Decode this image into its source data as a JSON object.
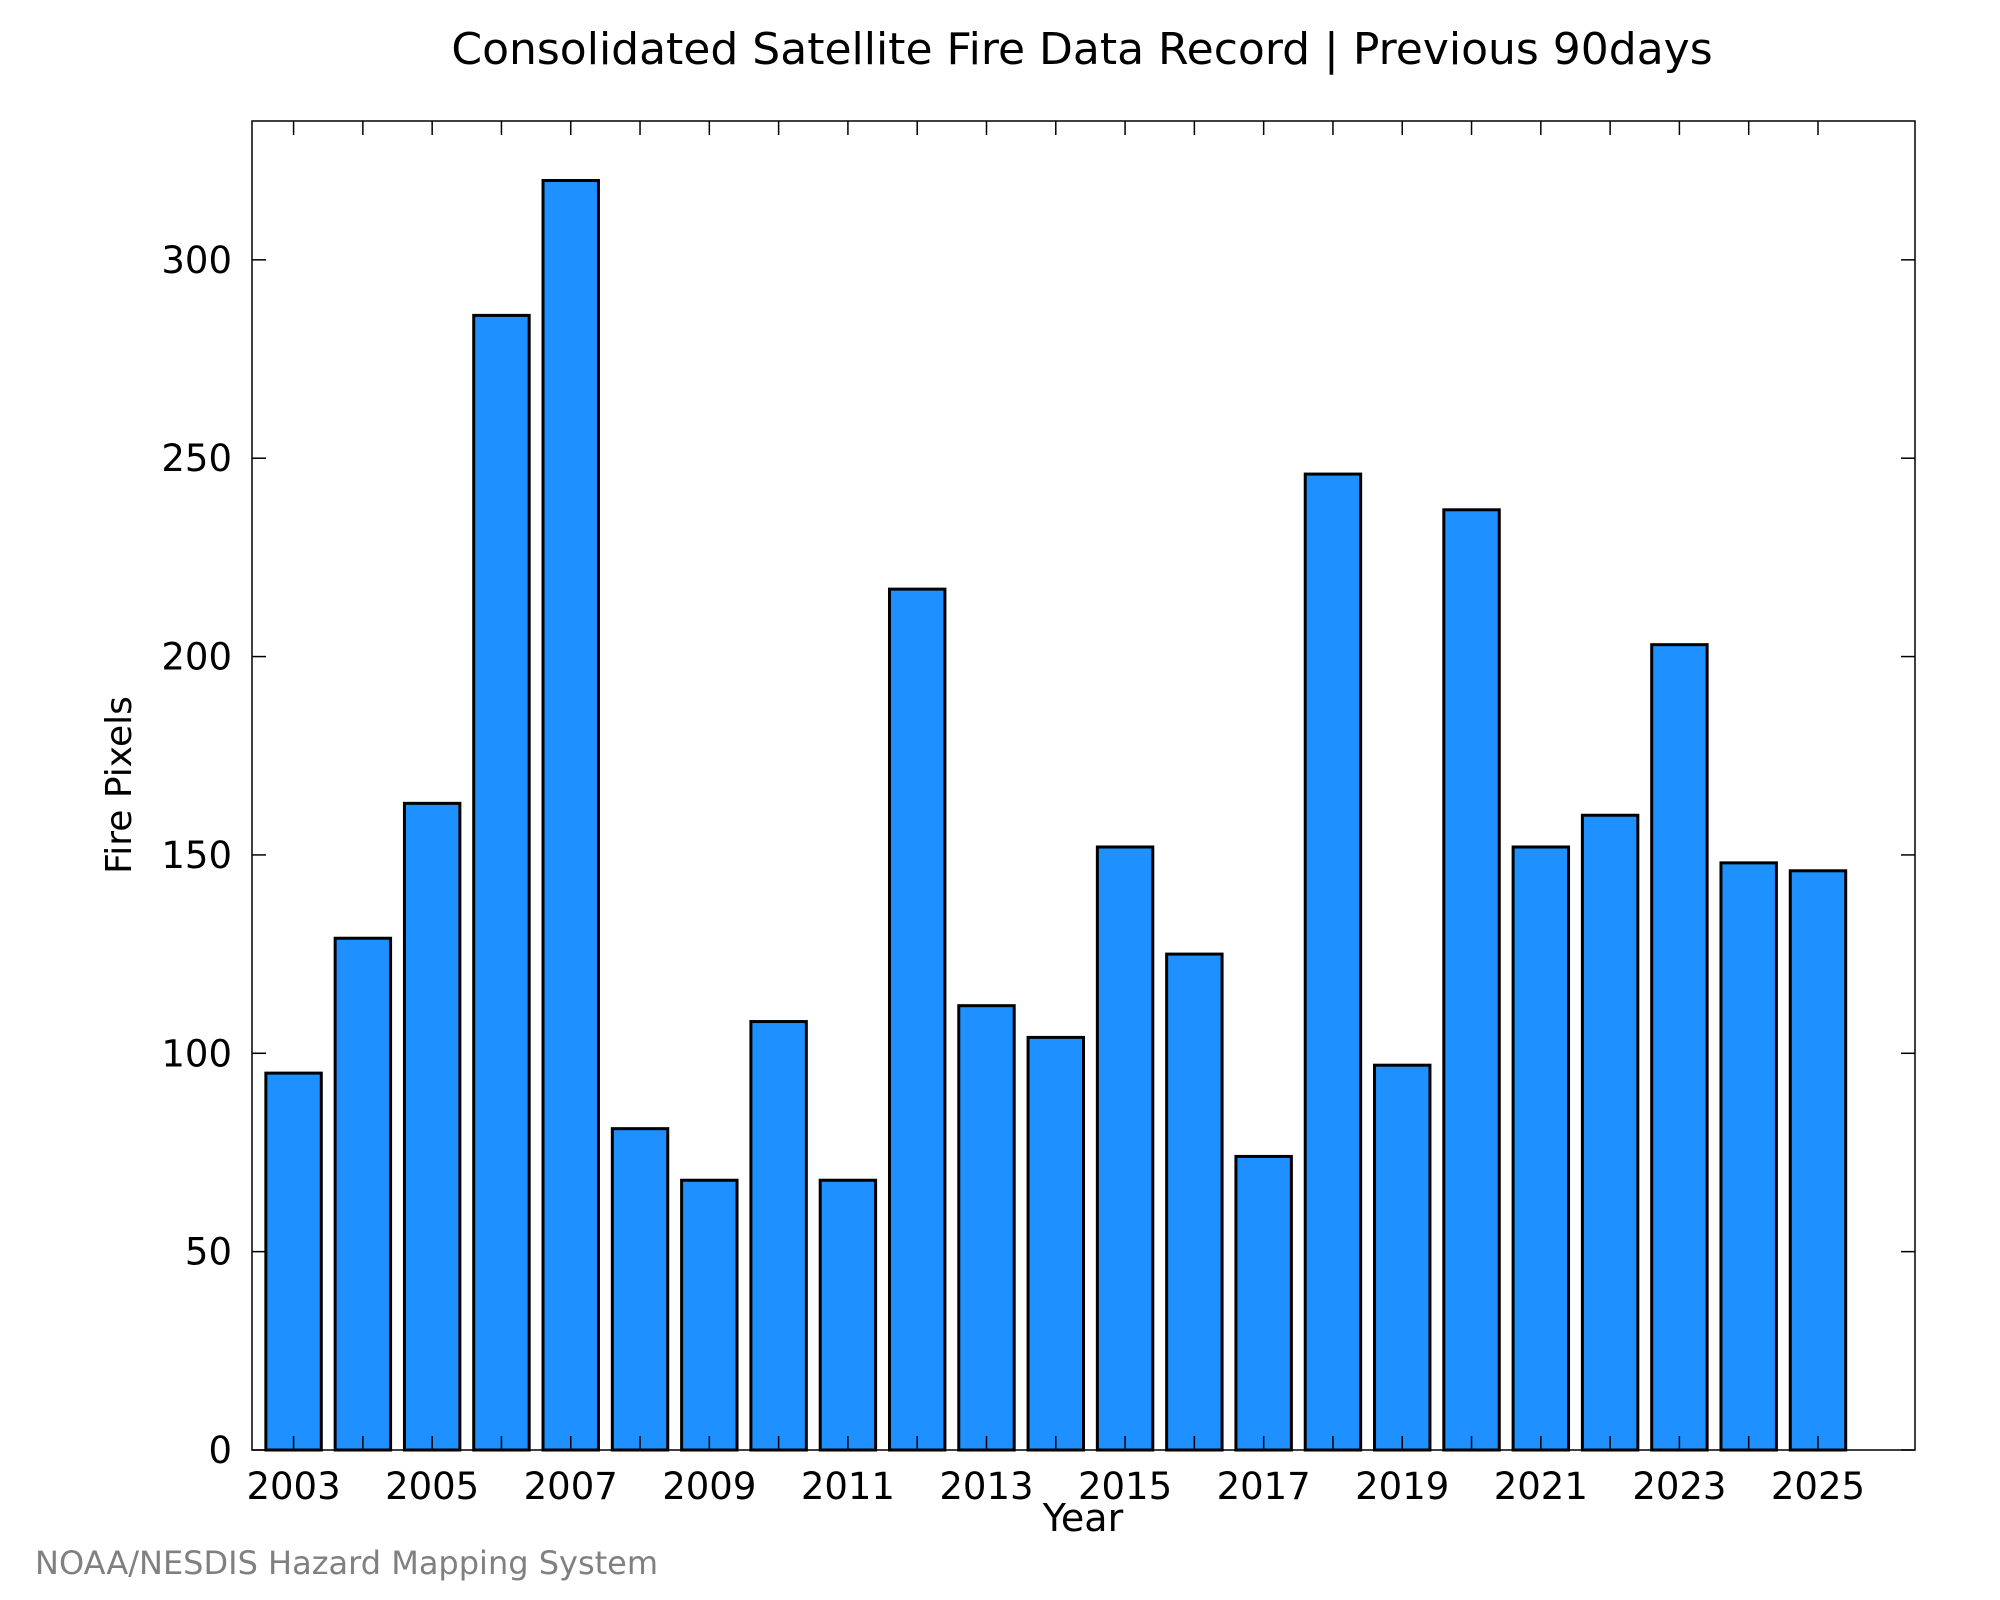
{
  "chart_data": {
    "type": "bar",
    "title": "Consolidated Satellite Fire Data Record | Previous 90days",
    "xlabel": "Year",
    "ylabel": "Fire Pixels",
    "categories": [
      2003,
      2004,
      2005,
      2006,
      2007,
      2008,
      2009,
      2010,
      2011,
      2012,
      2013,
      2014,
      2015,
      2016,
      2017,
      2018,
      2019,
      2020,
      2021,
      2022,
      2023,
      2024,
      2025
    ],
    "values": [
      95,
      129,
      163,
      286,
      320,
      81,
      68,
      108,
      68,
      217,
      112,
      104,
      152,
      125,
      74,
      246,
      97,
      237,
      152,
      160,
      203,
      148,
      146
    ],
    "xlim": [
      2002.4,
      2026.4
    ],
    "ylim": [
      0,
      335
    ],
    "x_ticks": [
      2003,
      2005,
      2007,
      2009,
      2011,
      2013,
      2015,
      2017,
      2019,
      2021,
      2023,
      2025
    ],
    "x_tick_labels": [
      "2003",
      "2005",
      "2007",
      "2009",
      "2011",
      "2013",
      "2015",
      "2017",
      "2019",
      "2021",
      "2023",
      "2025"
    ],
    "x_minor_ticks": [
      2003,
      2004,
      2005,
      2006,
      2007,
      2008,
      2009,
      2010,
      2011,
      2012,
      2013,
      2014,
      2015,
      2016,
      2017,
      2018,
      2019,
      2020,
      2021,
      2022,
      2023,
      2024,
      2025
    ],
    "y_ticks": [
      0,
      50,
      100,
      150,
      200,
      250,
      300
    ],
    "y_tick_labels": [
      "0",
      "50",
      "100",
      "150",
      "200",
      "250",
      "300"
    ],
    "grid": false,
    "legend": "none",
    "bar_color": "#1e90ff",
    "bar_edge_color": "#000000",
    "source_note": "NOAA/NESDIS Hazard Mapping System",
    "source_note_color": "#808080"
  }
}
